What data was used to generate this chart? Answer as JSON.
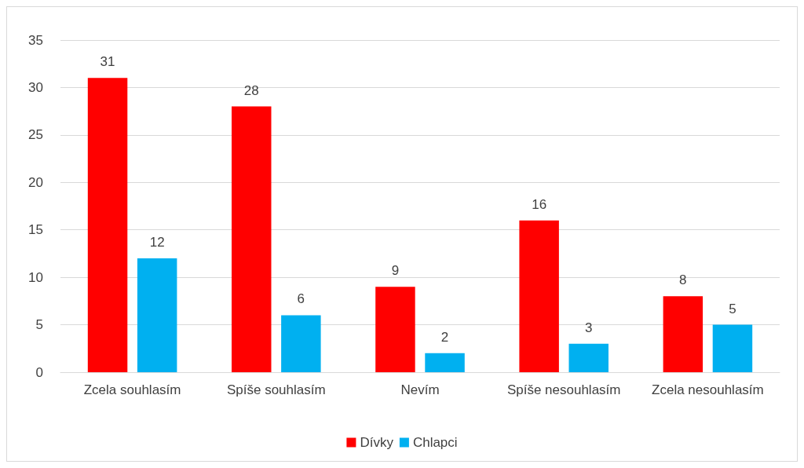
{
  "chart_data": {
    "type": "bar",
    "categories": [
      "Zcela souhlasím",
      "Spíše souhlasím",
      "Nevím",
      "Spíše nesouhlasím",
      "Zcela nesouhlasím"
    ],
    "series": [
      {
        "name": "Dívky",
        "color": "#ff0000",
        "values": [
          31,
          28,
          9,
          16,
          8
        ]
      },
      {
        "name": "Chlapci",
        "color": "#00b0f0",
        "values": [
          12,
          6,
          2,
          3,
          5
        ]
      }
    ],
    "ylim": [
      0,
      35
    ],
    "yticks": [
      0,
      5,
      10,
      15,
      20,
      25,
      30,
      35
    ],
    "grid": "y",
    "legend": "bottom",
    "data_labels": true
  }
}
